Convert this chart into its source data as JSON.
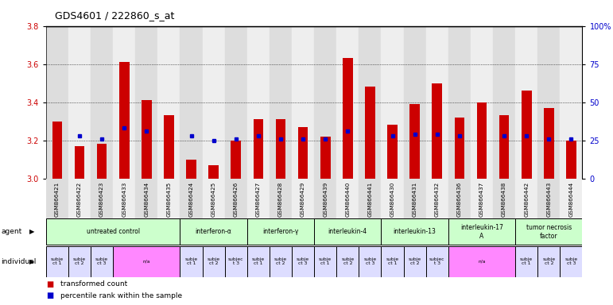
{
  "title": "GDS4601 / 222860_s_at",
  "samples": [
    "GSM866421",
    "GSM866422",
    "GSM866423",
    "GSM866433",
    "GSM866434",
    "GSM866435",
    "GSM866424",
    "GSM866425",
    "GSM866426",
    "GSM866427",
    "GSM866428",
    "GSM866429",
    "GSM866439",
    "GSM866440",
    "GSM866441",
    "GSM866430",
    "GSM866431",
    "GSM866432",
    "GSM866436",
    "GSM866437",
    "GSM866438",
    "GSM866442",
    "GSM866443",
    "GSM866444"
  ],
  "red_values": [
    3.3,
    3.17,
    3.18,
    3.61,
    3.41,
    3.33,
    3.1,
    3.07,
    3.2,
    3.31,
    3.31,
    3.27,
    3.22,
    3.63,
    3.48,
    3.28,
    3.39,
    3.5,
    3.32,
    3.4,
    3.33,
    3.46,
    3.37,
    3.2
  ],
  "blue_pct": [
    null,
    28,
    26,
    33,
    31,
    null,
    28,
    25,
    26,
    28,
    26,
    26,
    26,
    31,
    null,
    28,
    29,
    29,
    28,
    null,
    28,
    28,
    26,
    26
  ],
  "agents": [
    {
      "label": "untreated control",
      "start": 0,
      "end": 5
    },
    {
      "label": "interferon-α",
      "start": 6,
      "end": 8
    },
    {
      "label": "interferon-γ",
      "start": 9,
      "end": 11
    },
    {
      "label": "interleukin-4",
      "start": 12,
      "end": 14
    },
    {
      "label": "interleukin-13",
      "start": 15,
      "end": 17
    },
    {
      "label": "interleukin-17\nA",
      "start": 18,
      "end": 20
    },
    {
      "label": "tumor necrosis\nfactor",
      "start": 21,
      "end": 23
    }
  ],
  "individuals": [
    {
      "label": "subje\nct 1",
      "start": 0,
      "end": 0,
      "pink": false
    },
    {
      "label": "subje\nct 2",
      "start": 1,
      "end": 1,
      "pink": false
    },
    {
      "label": "subje\nct 3",
      "start": 2,
      "end": 2,
      "pink": false
    },
    {
      "label": "n/a",
      "start": 3,
      "end": 5,
      "pink": true
    },
    {
      "label": "subje\nct 1",
      "start": 6,
      "end": 6,
      "pink": false
    },
    {
      "label": "subje\nct 2",
      "start": 7,
      "end": 7,
      "pink": false
    },
    {
      "label": "subjec\nt 3",
      "start": 8,
      "end": 8,
      "pink": false
    },
    {
      "label": "subje\nct 1",
      "start": 9,
      "end": 9,
      "pink": false
    },
    {
      "label": "subje\nct 2",
      "start": 10,
      "end": 10,
      "pink": false
    },
    {
      "label": "subje\nct 3",
      "start": 11,
      "end": 11,
      "pink": false
    },
    {
      "label": "subje\nct 1",
      "start": 12,
      "end": 12,
      "pink": false
    },
    {
      "label": "subje\nct 2",
      "start": 13,
      "end": 13,
      "pink": false
    },
    {
      "label": "subje\nct 3",
      "start": 14,
      "end": 14,
      "pink": false
    },
    {
      "label": "subje\nct 1",
      "start": 15,
      "end": 15,
      "pink": false
    },
    {
      "label": "subje\nct 2",
      "start": 16,
      "end": 16,
      "pink": false
    },
    {
      "label": "subjec\nt 3",
      "start": 17,
      "end": 17,
      "pink": false
    },
    {
      "label": "n/a",
      "start": 18,
      "end": 20,
      "pink": true
    },
    {
      "label": "subje\nct 1",
      "start": 21,
      "end": 21,
      "pink": false
    },
    {
      "label": "subje\nct 2",
      "start": 22,
      "end": 22,
      "pink": false
    },
    {
      "label": "subje\nct 3",
      "start": 23,
      "end": 23,
      "pink": false
    }
  ],
  "ylim_left": [
    3.0,
    3.8
  ],
  "ylim_right": [
    0,
    100
  ],
  "yticks_left": [
    3.0,
    3.2,
    3.4,
    3.6,
    3.8
  ],
  "yticks_right": [
    0,
    25,
    50,
    75,
    100
  ],
  "ytick_labels_right": [
    "0",
    "25",
    "50",
    "75",
    "100%"
  ],
  "red_color": "#cc0000",
  "blue_color": "#0000cc",
  "agent_bg": "#ccffcc",
  "individual_bg_pink": "#ff88ff",
  "individual_bg_lavender": "#ddddff",
  "bar_bg_odd": "#dddddd",
  "bar_bg_even": "#eeeeee",
  "title_fontsize": 9,
  "tick_fontsize": 7,
  "bar_width": 0.45
}
